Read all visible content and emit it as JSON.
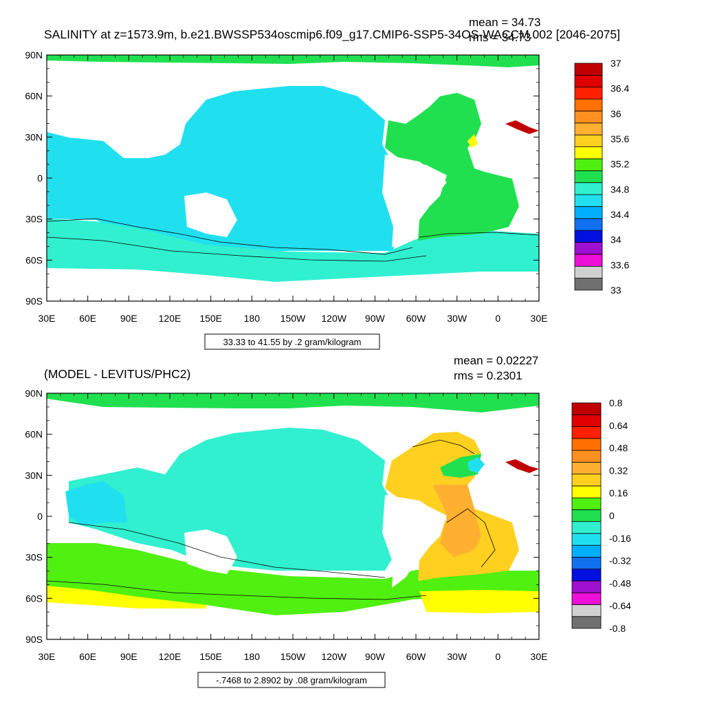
{
  "colors": {
    "land": "#ffffff",
    "frame": "#000000",
    "salinity_scale": [
      "#707070",
      "#d0d0d0",
      "#ee10d8",
      "#a010d0",
      "#0010e0",
      "#1070f0",
      "#00b0ff",
      "#20e0f0",
      "#30f0d0",
      "#20e050",
      "#50f010",
      "#ffff00",
      "#ffd020",
      "#ffb030",
      "#ff9020",
      "#ff7000",
      "#ff2000",
      "#e00000",
      "#c00000"
    ],
    "anomaly_scale": [
      "#707070",
      "#d0d0d0",
      "#ee10d8",
      "#a010d0",
      "#0010e0",
      "#1070f0",
      "#00b0ff",
      "#20e0f0",
      "#30f0d0",
      "#20e050",
      "#50f010",
      "#ffff00",
      "#ffd020",
      "#ffb030",
      "#ff9020",
      "#ff7000",
      "#ff2000",
      "#e00000",
      "#c00000"
    ]
  },
  "chart_data": [
    {
      "type": "heatmap",
      "title": "SALINITY at z=1573.9m, b.e21.BWSSP534oscmip6.f09_g17.CMIP6-SSP5-34OS-WACCM.002 [2046-2075]",
      "stats": {
        "mean": "mean = 34.73",
        "rms": "rms = 34.73"
      },
      "x_ticks": [
        "30E",
        "60E",
        "90E",
        "120E",
        "150E",
        "180",
        "150W",
        "120W",
        "90W",
        "60W",
        "30W",
        "0",
        "30E"
      ],
      "y_ticks": [
        "90N",
        "60N",
        "30N",
        "0",
        "30S",
        "60S",
        "90S"
      ],
      "colorbar_labels": [
        "33",
        "33.6",
        "34",
        "34.4",
        "34.8",
        "35.2",
        "35.6",
        "36",
        "36.4",
        "37"
      ],
      "contour_info": "33.33 to 41.55 by .2 gram/kilogram",
      "ylim": [
        -90,
        90
      ],
      "xlim": [
        30,
        390
      ]
    },
    {
      "type": "heatmap",
      "title": "(MODEL - LEVITUS/PHC2)",
      "stats": {
        "mean": "mean = 0.02227",
        "rms": "rms = 0.2301"
      },
      "x_ticks": [
        "30E",
        "60E",
        "90E",
        "120E",
        "150E",
        "180",
        "150W",
        "120W",
        "90W",
        "60W",
        "30W",
        "0",
        "30E"
      ],
      "y_ticks": [
        "90N",
        "60N",
        "30N",
        "0",
        "30S",
        "60S",
        "90S"
      ],
      "colorbar_labels": [
        "-0.8",
        "-0.64",
        "-0.48",
        "-0.32",
        "-0.16",
        "0",
        "0.16",
        "0.32",
        "0.48",
        "0.64",
        "0.8"
      ],
      "contour_info": "-.7468 to 2.8902 by .08 gram/kilogram",
      "ylim": [
        -90,
        90
      ],
      "xlim": [
        30,
        390
      ]
    }
  ]
}
